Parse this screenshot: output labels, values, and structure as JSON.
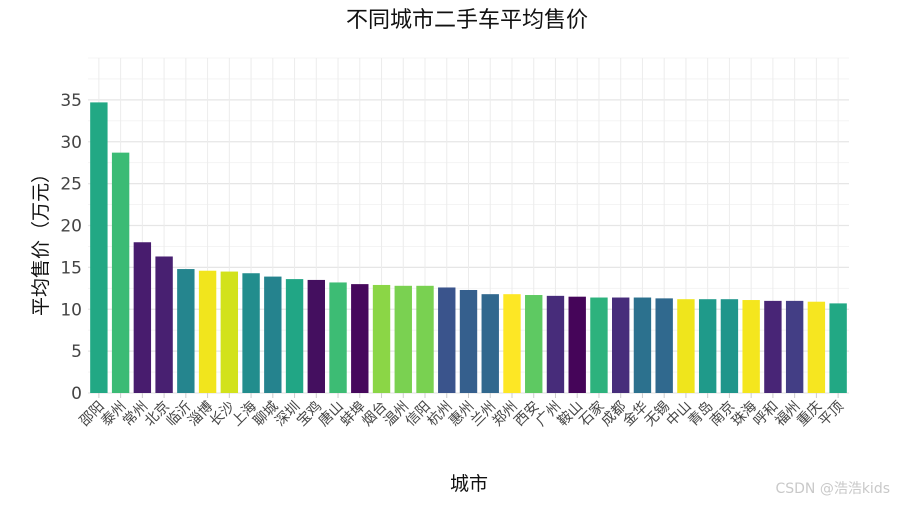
{
  "watermark": "CSDN @浩浩kids",
  "chart_data": {
    "type": "bar",
    "title": "不同城市二手车平均售价",
    "xlabel": "城市",
    "ylabel": "平均售价（万元）",
    "ylim": [
      0,
      40
    ],
    "yticks": [
      0,
      5,
      10,
      15,
      20,
      25,
      30,
      35
    ],
    "grid": true,
    "legend": "none",
    "categories": [
      "邵阳",
      "泰州",
      "常州",
      "北京",
      "临沂",
      "淄博",
      "长沙",
      "上海",
      "聊城",
      "深圳",
      "宝鸡",
      "唐山",
      "蚌埠",
      "烟台",
      "温州",
      "信阳",
      "杭州",
      "惠州",
      "兰州",
      "郑州",
      "西安",
      "广州",
      "鞍山",
      "石家",
      "成都",
      "金华",
      "无锡",
      "中山",
      "青岛",
      "南京",
      "珠海",
      "呼和",
      "福州",
      "重庆",
      "平顶"
    ],
    "values": [
      34.7,
      28.7,
      18.0,
      16.3,
      14.8,
      14.6,
      14.5,
      14.3,
      13.9,
      13.6,
      13.5,
      13.2,
      13.0,
      12.9,
      12.8,
      12.8,
      12.6,
      12.3,
      11.8,
      11.8,
      11.7,
      11.6,
      11.5,
      11.4,
      11.4,
      11.4,
      11.3,
      11.2,
      11.2,
      11.2,
      11.1,
      11.0,
      11.0,
      10.9,
      10.7
    ],
    "colors": [
      "#22A884",
      "#3BBB75",
      "#481C6E",
      "#482071",
      "#25858E",
      "#F1E51D",
      "#D2E21B",
      "#228D8D",
      "#25838E",
      "#21A685",
      "#440F5F",
      "#3DBC74",
      "#46085C",
      "#8BD646",
      "#7AD151",
      "#79D151",
      "#3A548C",
      "#355F8D",
      "#31688E",
      "#FDE725",
      "#5EC962",
      "#472C7A",
      "#450559",
      "#2DB27D",
      "#472D7B",
      "#2C718E",
      "#30698E",
      "#EFE51C",
      "#1F9A8A",
      "#1F958B",
      "#F4E61E",
      "#482576",
      "#433E85",
      "#F6E620",
      "#22A884"
    ]
  }
}
